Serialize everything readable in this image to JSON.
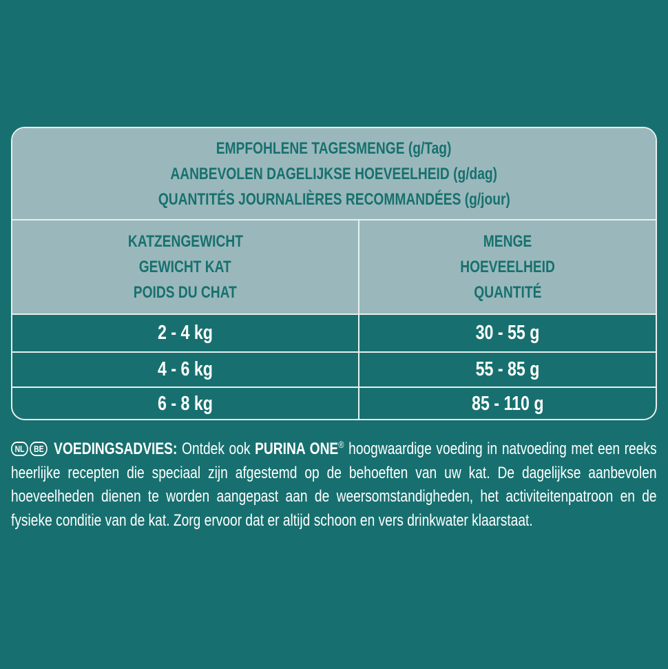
{
  "table": {
    "title_lines": [
      "EMPFOHLENE TAGESMENGE (g/Tag)",
      "AANBEVOLEN DAGELIJKSE HOEVEELHEID (g/dag)",
      "QUANTITÉS JOURNALIÈRES RECOMMANDÉES (g/jour)"
    ],
    "col_weight": [
      "KATZENGEWICHT",
      "GEWICHT KAT",
      "POIDS DU CHAT"
    ],
    "col_amount": [
      "MENGE",
      "HOEVEELHEID",
      "QUANTITÉ"
    ],
    "rows": [
      {
        "weight": "2 - 4 kg",
        "amount": "30 - 55 g"
      },
      {
        "weight": "4 - 6 kg",
        "amount": "55 - 85 g"
      },
      {
        "weight": "6 - 8 kg",
        "amount": "85 - 110 g"
      }
    ]
  },
  "note": {
    "badges": [
      "NL",
      "BE"
    ],
    "heading": "VOEDINGSADVIES:",
    "text1": "Ontdek ook",
    "brand": "PURINA ONE",
    "reg": "®",
    "text2": "hoogwaardige voeding in natvoeding met een reeks heerlijke recepten die speciaal zijn afgestemd op de behoeften van uw kat. De dagelijkse aanbevolen hoeveelheden dienen te worden aangepast aan de weersomstandigheden, het activiteitenpatroon en de fysieke conditie van de kat. Zorg ervoor dat er altijd schoon en vers drinkwater klaarstaat."
  },
  "colors": {
    "background": "#17706f",
    "header": "#9ab8bb",
    "border": "#e8f0f0"
  }
}
